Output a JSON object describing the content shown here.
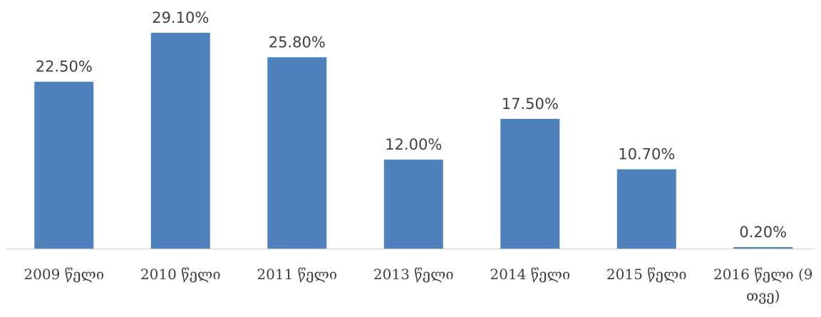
{
  "chart_data": {
    "type": "bar",
    "categories": [
      "2009 წელი",
      "2010 წელი",
      "2011 წელი",
      "2013 წელი",
      "2014 წელი",
      "2015 წელი",
      "2016 წელი (9 თვე)"
    ],
    "values": [
      22.5,
      29.1,
      25.8,
      12.0,
      17.5,
      10.7,
      0.2
    ],
    "value_labels": [
      "22.50%",
      "29.10%",
      "25.80%",
      "12.00%",
      "17.50%",
      "10.70%",
      "0.20%"
    ],
    "color": "#4f81bd"
  }
}
